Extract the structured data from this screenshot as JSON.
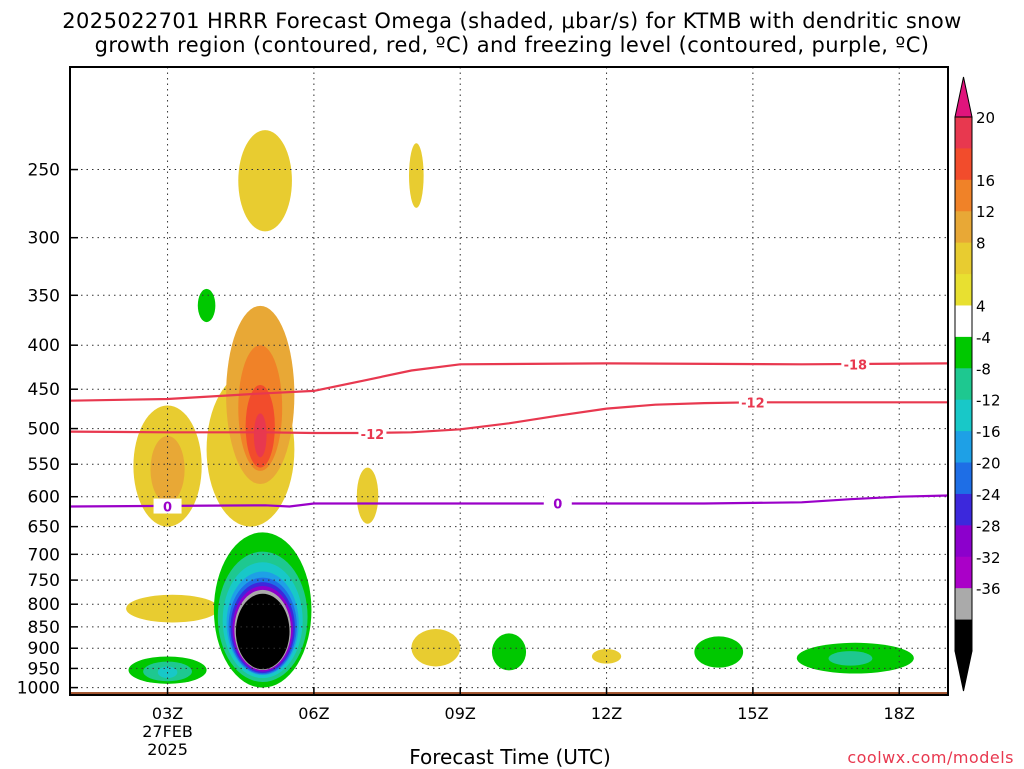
{
  "title_line1": "2025022701 HRRR Forecast Omega (shaded, μbar/s) for KTMB with dendritic snow",
  "title_line2": "growth region (contoured, red, ºC) and freezing level (contoured, purple, ºC)",
  "credit": "coolwx.com/models",
  "chart_data": {
    "type": "time-height cross-section",
    "xlabel": "Forecast Time (UTC)",
    "ylabel": "",
    "x_range_hours": [
      1,
      19
    ],
    "y_range_hpa": [
      1020,
      190
    ],
    "y_scale": "log",
    "grid": true,
    "x_ticks": [
      {
        "hour": 3,
        "label": "03Z"
      },
      {
        "hour": 6,
        "label": "06Z"
      },
      {
        "hour": 9,
        "label": "09Z"
      },
      {
        "hour": 12,
        "label": "12Z"
      },
      {
        "hour": 15,
        "label": "15Z"
      },
      {
        "hour": 18,
        "label": "18Z"
      }
    ],
    "x_date_label": [
      "27FEB",
      "2025"
    ],
    "y_ticks": [
      250,
      300,
      350,
      400,
      450,
      500,
      550,
      600,
      650,
      700,
      750,
      800,
      850,
      900,
      950,
      1000
    ],
    "colorbar": {
      "levels": [
        20,
        16,
        12,
        8,
        4,
        -4,
        -8,
        -12,
        -16,
        -20,
        -24,
        -28,
        -32,
        -36
      ],
      "colors": [
        "#e8384f",
        "#f24c2c",
        "#f08228",
        "#e8a836",
        "#e8cc30",
        "#e8e030",
        "#ffffff",
        "#00c800",
        "#1ec890",
        "#18c8c8",
        "#1ea0e6",
        "#1e6ee6",
        "#3c28dc",
        "#8c00cc",
        "#aa00c8",
        "#aaaaaa",
        "#000000"
      ],
      "top_arrow_color": "#e0147c",
      "bottom_arrow_color": "#000000"
    },
    "contours": [
      {
        "name": "-18",
        "color": "#e8384f",
        "points": [
          [
            1.0,
            464
          ],
          [
            3.0,
            462
          ],
          [
            5.0,
            455
          ],
          [
            6.0,
            452
          ],
          [
            7.0,
            440
          ],
          [
            8.0,
            428
          ],
          [
            9.0,
            421
          ],
          [
            12.0,
            420
          ],
          [
            16.0,
            421
          ],
          [
            19.0,
            420
          ]
        ],
        "labels": [
          {
            "hour": 17.1,
            "hpa": 421,
            "text": "-18"
          }
        ]
      },
      {
        "name": "-12",
        "color": "#e8384f",
        "points": [
          [
            1.0,
            504
          ],
          [
            3.0,
            505
          ],
          [
            5.0,
            505
          ],
          [
            6.0,
            506
          ],
          [
            7.0,
            506
          ],
          [
            8.0,
            505
          ],
          [
            9.0,
            501
          ],
          [
            10.0,
            493
          ],
          [
            11.0,
            483
          ],
          [
            12.0,
            474
          ],
          [
            13.0,
            469
          ],
          [
            14.0,
            467
          ],
          [
            15.0,
            466
          ],
          [
            17.0,
            466
          ],
          [
            19.0,
            466
          ]
        ],
        "labels": [
          {
            "hour": 7.2,
            "hpa": 507,
            "text": "-12"
          },
          {
            "hour": 15.0,
            "hpa": 466,
            "text": "-12"
          }
        ]
      },
      {
        "name": "0",
        "color": "#9a00c8",
        "points": [
          [
            1.0,
            616
          ],
          [
            3.0,
            615
          ],
          [
            5.0,
            614
          ],
          [
            5.5,
            616
          ],
          [
            6.0,
            611
          ],
          [
            8.0,
            611
          ],
          [
            11.0,
            611
          ],
          [
            14.0,
            611
          ],
          [
            16.0,
            609
          ],
          [
            17.0,
            604
          ],
          [
            18.0,
            600
          ],
          [
            19.0,
            598
          ]
        ],
        "labels": [
          {
            "hour": 3.0,
            "hpa": 616,
            "text": "0"
          },
          {
            "hour": 11.0,
            "hpa": 611,
            "text": "0"
          }
        ]
      }
    ],
    "shaded_regions": [
      {
        "level": "4",
        "cx": 4.7,
        "cy": 540,
        "rx": 0.9,
        "ry": 110
      },
      {
        "level": "4",
        "cx": 5.0,
        "cy": 260,
        "rx": 0.55,
        "ry": 35
      },
      {
        "level": "4",
        "cx": 3.0,
        "cy": 560,
        "rx": 0.7,
        "ry": 90
      },
      {
        "level": "4",
        "cx": 7.1,
        "cy": 600,
        "rx": 0.22,
        "ry": 45
      },
      {
        "level": "4",
        "cx": 8.1,
        "cy": 255,
        "rx": 0.15,
        "ry": 22
      },
      {
        "level": "4",
        "cx": 3.1,
        "cy": 810,
        "rx": 0.95,
        "ry": 30
      },
      {
        "level": "4",
        "cx": 8.5,
        "cy": 900,
        "rx": 0.5,
        "ry": 45
      },
      {
        "level": "4",
        "cx": 12.0,
        "cy": 920,
        "rx": 0.3,
        "ry": 18
      },
      {
        "level": "8",
        "cx": 3.0,
        "cy": 560,
        "rx": 0.35,
        "ry": 50
      },
      {
        "level": "8",
        "cx": 4.9,
        "cy": 470,
        "rx": 0.7,
        "ry": 110
      },
      {
        "level": "12",
        "cx": 4.9,
        "cy": 480,
        "rx": 0.45,
        "ry": 80
      },
      {
        "level": "16",
        "cx": 4.9,
        "cy": 500,
        "rx": 0.3,
        "ry": 55
      },
      {
        "level": "20",
        "cx": 4.9,
        "cy": 510,
        "rx": 0.13,
        "ry": 30
      },
      {
        "level": "-4",
        "cx": 4.95,
        "cy": 830,
        "rx": 1.0,
        "ry": 170
      },
      {
        "level": "-8",
        "cx": 4.95,
        "cy": 840,
        "rx": 0.92,
        "ry": 145
      },
      {
        "level": "-12",
        "cx": 4.95,
        "cy": 845,
        "rx": 0.82,
        "ry": 130
      },
      {
        "level": "-16",
        "cx": 4.95,
        "cy": 850,
        "rx": 0.74,
        "ry": 117
      },
      {
        "level": "-20",
        "cx": 4.95,
        "cy": 855,
        "rx": 0.7,
        "ry": 110
      },
      {
        "level": "-24",
        "cx": 4.95,
        "cy": 858,
        "rx": 0.66,
        "ry": 104
      },
      {
        "level": "-28",
        "cx": 4.95,
        "cy": 860,
        "rx": 0.62,
        "ry": 98
      },
      {
        "level": "-32",
        "cx": 4.95,
        "cy": 862,
        "rx": 0.58,
        "ry": 92
      },
      {
        "level": "-36",
        "cx": 4.95,
        "cy": 865,
        "rx": 0.55,
        "ry": 87
      },
      {
        "level": "-4",
        "cx": 3.0,
        "cy": 955,
        "rx": 0.8,
        "ry": 35
      },
      {
        "level": "-8",
        "cx": 3.0,
        "cy": 958,
        "rx": 0.5,
        "ry": 25
      },
      {
        "level": "-12",
        "cx": 3.0,
        "cy": 960,
        "rx": 0.2,
        "ry": 15
      },
      {
        "level": "-4",
        "cx": 3.8,
        "cy": 360,
        "rx": 0.18,
        "ry": 16
      },
      {
        "level": "-4",
        "cx": 10.0,
        "cy": 910,
        "rx": 0.35,
        "ry": 45
      },
      {
        "level": "-4",
        "cx": 14.3,
        "cy": 910,
        "rx": 0.5,
        "ry": 38
      },
      {
        "level": "-4",
        "cx": 17.1,
        "cy": 925,
        "rx": 1.2,
        "ry": 38
      },
      {
        "level": "-8",
        "cx": 17.0,
        "cy": 925,
        "rx": 0.45,
        "ry": 18
      }
    ],
    "terrain": {
      "top_hpa": 1012,
      "color": "#a0522d"
    }
  }
}
